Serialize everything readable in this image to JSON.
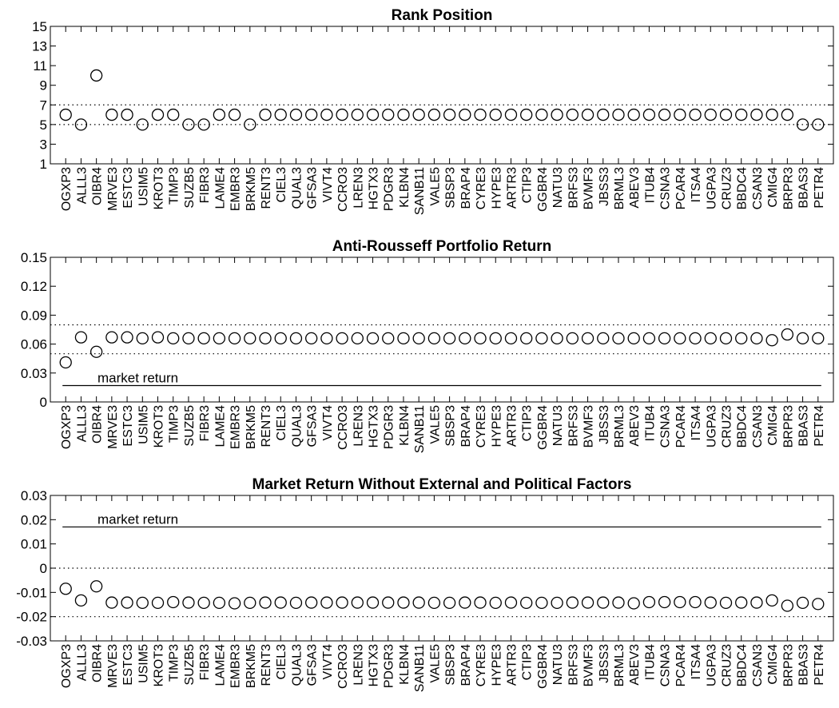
{
  "chart_data": [
    {
      "type": "scatter",
      "title": "Rank Position",
      "ylim": [
        1,
        15
      ],
      "yticks": [
        "1",
        "3",
        "5",
        "7",
        "9",
        "11",
        "13",
        "15"
      ],
      "ytick_values": [
        1,
        3,
        5,
        7,
        9,
        11,
        13,
        15
      ],
      "categories": [
        "OGXP3",
        "ALLL3",
        "OIBR4",
        "MRVE3",
        "ESTC3",
        "USIM5",
        "KROT3",
        "TIMP3",
        "SUZB5",
        "FIBR3",
        "LAME4",
        "EMBR3",
        "BRKM5",
        "RENT3",
        "CIEL3",
        "QUAL3",
        "GFSA3",
        "VIVT4",
        "CCRO3",
        "LREN3",
        "HGTX3",
        "PDGR3",
        "KLBN4",
        "SANB11",
        "VALE5",
        "SBSP3",
        "BRAP4",
        "CYRE3",
        "HYPE3",
        "ARTR3",
        "CTIP3",
        "GGBR4",
        "NATU3",
        "BRFS3",
        "BVMF3",
        "JBSS3",
        "BRML3",
        "ABEV3",
        "ITUB4",
        "CSNA3",
        "PCAR4",
        "ITSA4",
        "UGPA3",
        "CRUZ3",
        "BBDC4",
        "CSAN3",
        "CMIG4",
        "BRPR3",
        "BBAS3",
        "PETR4"
      ],
      "values": [
        6,
        5,
        10,
        6,
        6,
        5,
        6,
        6,
        5,
        5,
        6,
        6,
        5,
        6,
        6,
        6,
        6,
        6,
        6,
        6,
        6,
        6,
        6,
        6,
        6,
        6,
        6,
        6,
        6,
        6,
        6,
        6,
        6,
        6,
        6,
        6,
        6,
        6,
        6,
        6,
        6,
        6,
        6,
        6,
        6,
        6,
        6,
        6,
        5,
        5
      ],
      "reference_lines": [
        {
          "y": 5,
          "style": "dotted"
        },
        {
          "y": 7,
          "style": "dotted"
        }
      ],
      "grid": false
    },
    {
      "type": "scatter",
      "title": "Anti-Rousseff Portfolio Return",
      "ylim": [
        0,
        0.15
      ],
      "yticks": [
        "0",
        "0.03",
        "0.06",
        "0.09",
        "0.12",
        "0.15"
      ],
      "ytick_values": [
        0,
        0.03,
        0.06,
        0.09,
        0.12,
        0.15
      ],
      "categories": [
        "OGXP3",
        "ALLL3",
        "OIBR4",
        "MRVE3",
        "ESTC3",
        "USIM5",
        "KROT3",
        "TIMP3",
        "SUZB5",
        "FIBR3",
        "LAME4",
        "EMBR3",
        "BRKM5",
        "RENT3",
        "CIEL3",
        "QUAL3",
        "GFSA3",
        "VIVT4",
        "CCRO3",
        "LREN3",
        "HGTX3",
        "PDGR3",
        "KLBN4",
        "SANB11",
        "VALE5",
        "SBSP3",
        "BRAP4",
        "CYRE3",
        "HYPE3",
        "ARTR3",
        "CTIP3",
        "GGBR4",
        "NATU3",
        "BRFS3",
        "BVMF3",
        "JBSS3",
        "BRML3",
        "ABEV3",
        "ITUB4",
        "CSNA3",
        "PCAR4",
        "ITSA4",
        "UGPA3",
        "CRUZ3",
        "BBDC4",
        "CSAN3",
        "CMIG4",
        "BRPR3",
        "BBAS3",
        "PETR4"
      ],
      "values": [
        0.041,
        0.067,
        0.052,
        0.067,
        0.067,
        0.066,
        0.067,
        0.066,
        0.066,
        0.066,
        0.066,
        0.066,
        0.066,
        0.066,
        0.066,
        0.066,
        0.066,
        0.066,
        0.066,
        0.066,
        0.066,
        0.066,
        0.066,
        0.066,
        0.066,
        0.066,
        0.066,
        0.066,
        0.066,
        0.066,
        0.066,
        0.066,
        0.066,
        0.066,
        0.066,
        0.066,
        0.066,
        0.066,
        0.066,
        0.066,
        0.066,
        0.066,
        0.066,
        0.066,
        0.066,
        0.066,
        0.064,
        0.07,
        0.066,
        0.066
      ],
      "reference_lines": [
        {
          "y": 0.05,
          "style": "dotted"
        },
        {
          "y": 0.08,
          "style": "dotted"
        },
        {
          "y": 0.017,
          "style": "solid",
          "label": "market return"
        }
      ],
      "grid": false
    },
    {
      "type": "scatter",
      "title": "Market Return Without External and Political Factors",
      "ylim": [
        -0.03,
        0.03
      ],
      "yticks": [
        "-0.03",
        "-0.02",
        "-0.01",
        "0",
        "0.01",
        "0.02",
        "0.03"
      ],
      "ytick_values": [
        -0.03,
        -0.02,
        -0.01,
        0,
        0.01,
        0.02,
        0.03
      ],
      "categories": [
        "OGXP3",
        "ALLL3",
        "OIBR4",
        "MRVE3",
        "ESTC3",
        "USIM5",
        "KROT3",
        "TIMP3",
        "SUZB5",
        "FIBR3",
        "LAME4",
        "EMBR3",
        "BRKM5",
        "RENT3",
        "CIEL3",
        "QUAL3",
        "GFSA3",
        "VIVT4",
        "CCRO3",
        "LREN3",
        "HGTX3",
        "PDGR3",
        "KLBN4",
        "SANB11",
        "VALE5",
        "SBSP3",
        "BRAP4",
        "CYRE3",
        "HYPE3",
        "ARTR3",
        "CTIP3",
        "GGBR4",
        "NATU3",
        "BRFS3",
        "BVMF3",
        "JBSS3",
        "BRML3",
        "ABEV3",
        "ITUB4",
        "CSNA3",
        "PCAR4",
        "ITSA4",
        "UGPA3",
        "CRUZ3",
        "BBDC4",
        "CSAN3",
        "CMIG4",
        "BRPR3",
        "BBAS3",
        "PETR4"
      ],
      "values": [
        -0.0085,
        -0.0133,
        -0.0075,
        -0.0142,
        -0.0142,
        -0.0143,
        -0.0143,
        -0.014,
        -0.0142,
        -0.0143,
        -0.0143,
        -0.0145,
        -0.0143,
        -0.0142,
        -0.0142,
        -0.0143,
        -0.0142,
        -0.0142,
        -0.0142,
        -0.0142,
        -0.0142,
        -0.0142,
        -0.0142,
        -0.0142,
        -0.0143,
        -0.0143,
        -0.0142,
        -0.0142,
        -0.0143,
        -0.0142,
        -0.0143,
        -0.0143,
        -0.0143,
        -0.0142,
        -0.0142,
        -0.0142,
        -0.0142,
        -0.0145,
        -0.014,
        -0.014,
        -0.014,
        -0.014,
        -0.0142,
        -0.0143,
        -0.0142,
        -0.0142,
        -0.0133,
        -0.0155,
        -0.0143,
        -0.0148
      ],
      "reference_lines": [
        {
          "y": 0,
          "style": "dotted"
        },
        {
          "y": -0.02,
          "style": "dotted"
        },
        {
          "y": 0.017,
          "style": "solid",
          "label": "market return"
        }
      ],
      "grid": false
    }
  ]
}
